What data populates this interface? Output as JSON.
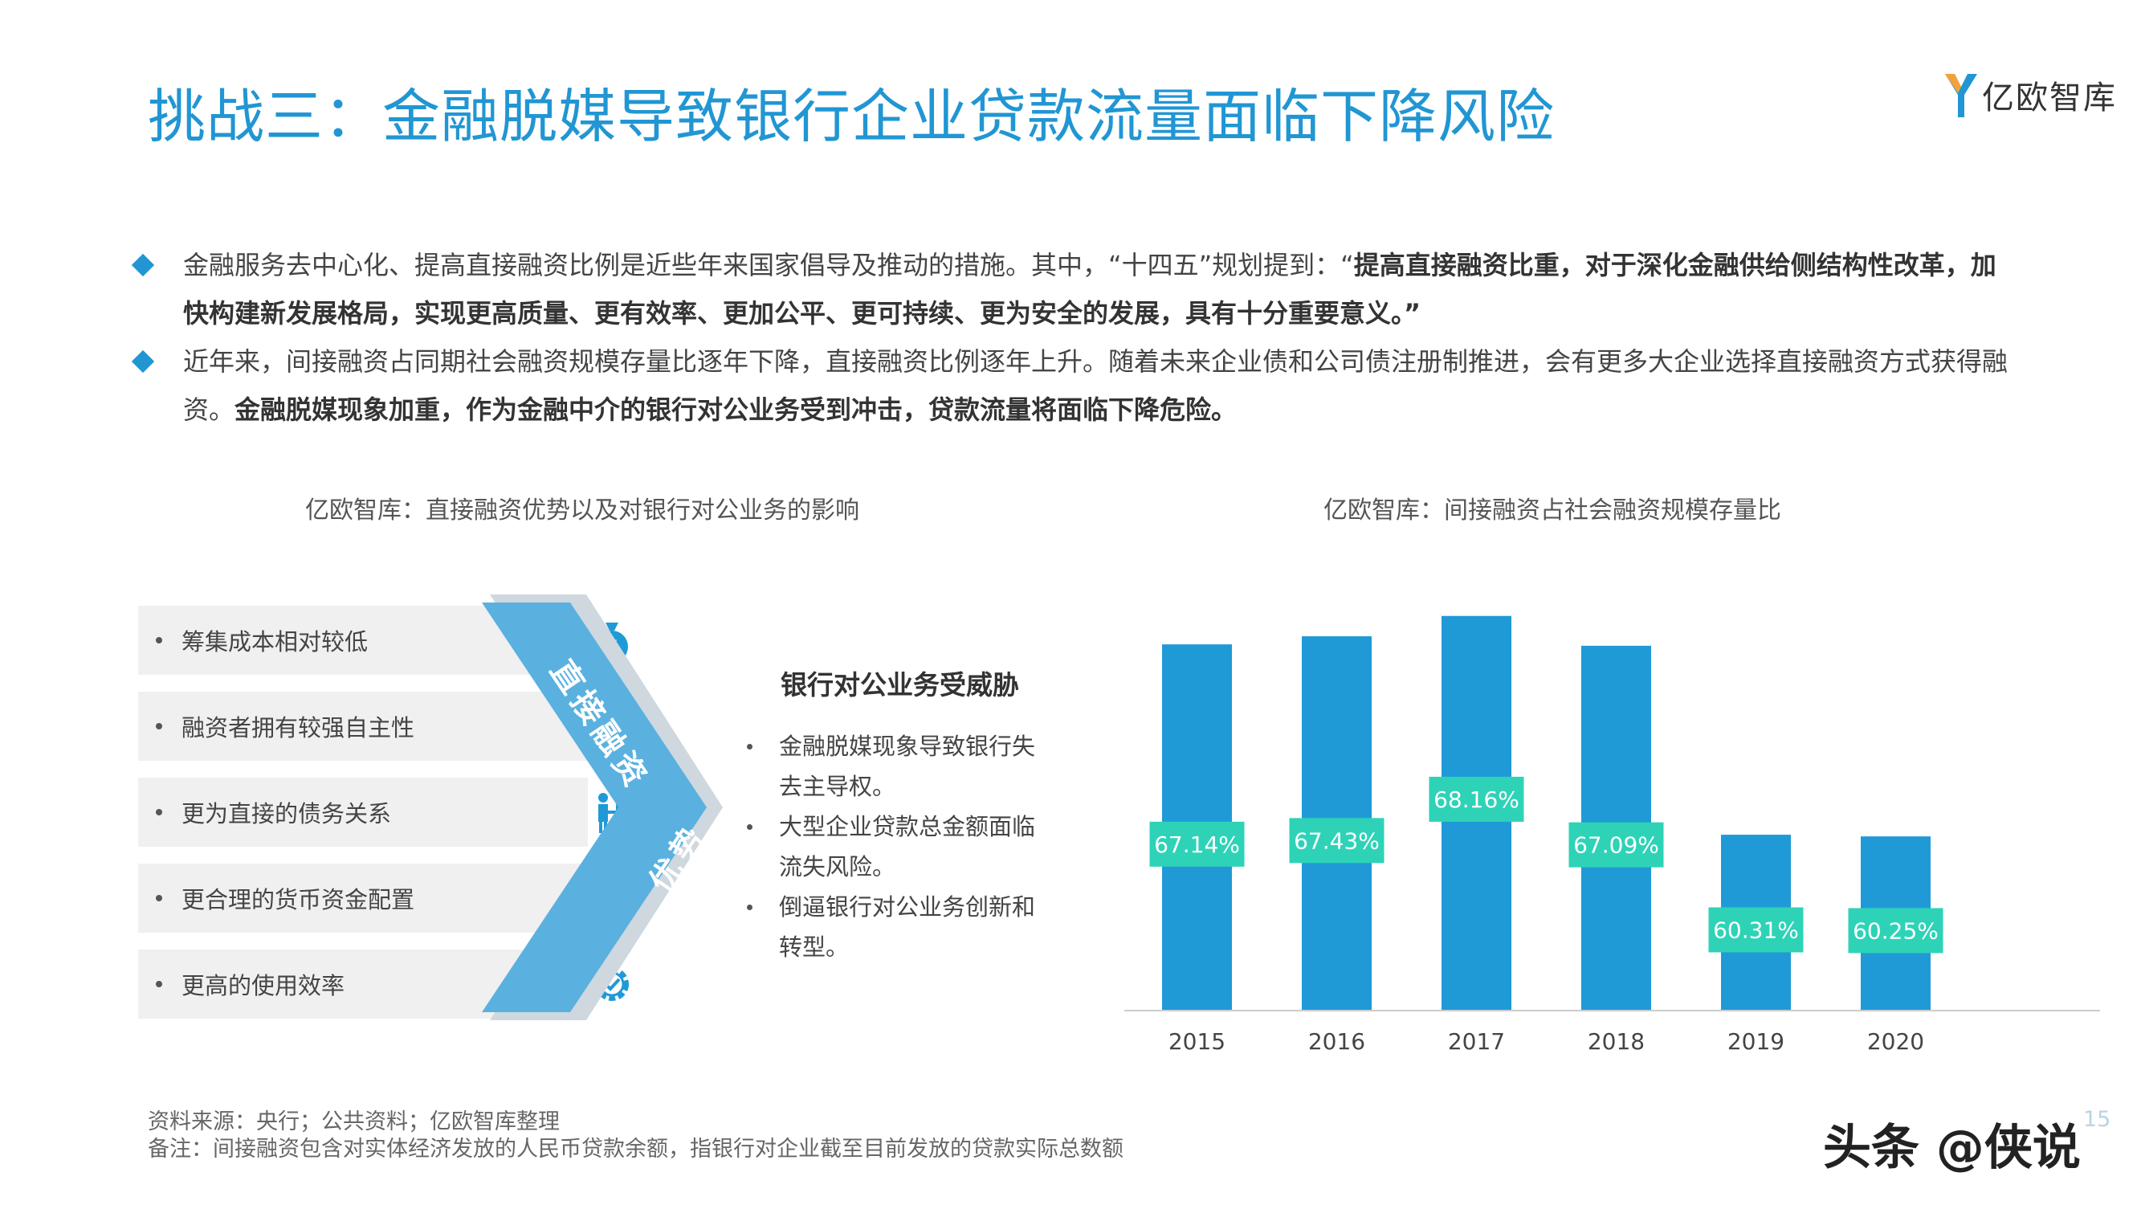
{
  "title": "挑战三：金融脱媒导致银行企业贷款流量面临下降风险",
  "logo": {
    "text": "亿欧智库",
    "accent": "#2196d3"
  },
  "intro": [
    {
      "normal": "金融服务去中心化、提高直接融资比例是近些年来国家倡导及推动的措施。其中，“十四五”规划提到：“",
      "bold": "提高直接融资比重，对于深化金融供给侧结构性改革，加快构建新发展格局，实现更高质量、更有效率、更加公平、更可持续、更为安全的发展，具有十分重要意义。",
      "tail": "”"
    },
    {
      "normal": "近年来，间接融资占同期社会融资规模存量比逐年下降，直接融资比例逐年上升。随着未来企业债和公司债注册制推进，会有更多大企业选择直接融资方式获得融资。",
      "bold": "金融脱媒现象加重，作为金融中介的银行对公业务受到冲击，贷款流量将面临下降危险。",
      "tail": ""
    }
  ],
  "left_section": {
    "title": "亿欧智库：直接融资优势以及对银行对公业务的影响",
    "advantages": [
      {
        "label": "筹集成本相对较低",
        "icon": "money-bag-icon"
      },
      {
        "label": "融资者拥有较强自主性",
        "icon": "person-icon"
      },
      {
        "label": "更为直接的债务关系",
        "icon": "people-icon"
      },
      {
        "label": "更合理的货币资金配置",
        "icon": "coins-icon"
      },
      {
        "label": "更高的使用效率",
        "icon": "gear-check-icon"
      }
    ],
    "chevron_top": "直接融资",
    "chevron_bottom": "优势",
    "threat_title": "银行对公业务受威胁",
    "threats": [
      "金融脱媒现象导致银行失去主导权。",
      "大型企业贷款总金额面临流失风险。",
      "倒逼银行对公业务创新和转型。"
    ]
  },
  "right_section": {
    "title": "亿欧智库：间接融资占社会融资规模存量比"
  },
  "chart_data": {
    "type": "bar",
    "categories": [
      "2015",
      "2016",
      "2017",
      "2018",
      "2019",
      "2020"
    ],
    "values": [
      67.14,
      67.43,
      68.16,
      67.09,
      60.31,
      60.25
    ],
    "data_labels": [
      "67.14%",
      "67.43%",
      "68.16%",
      "67.09%",
      "60.31%",
      "60.25%"
    ],
    "ylim": [
      54,
      68.7
    ],
    "bar_color": "#1f9ad6",
    "label_color": "#2ed3b7",
    "grid": false
  },
  "footer": {
    "source": "资料来源：央行；公共资料；亿欧智库整理",
    "note": "备注：间接融资包含对实体经济发放的人民币贷款余额，指银行对企业截至目前发放的贷款实际总数额",
    "page": "15"
  },
  "watermark": "头条 @侠说"
}
